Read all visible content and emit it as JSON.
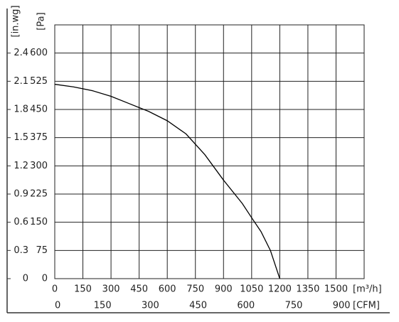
{
  "chart_data": {
    "type": "line",
    "x": [
      0,
      100,
      200,
      300,
      400,
      450,
      500,
      600,
      700,
      800,
      900,
      1000,
      1050,
      1100,
      1150,
      1200
    ],
    "series": [
      {
        "color": "#000000",
        "values": [
          517,
          510,
          500,
          485,
          465,
          455,
          445,
          420,
          385,
          330,
          262,
          200,
          162,
          125,
          75,
          0
        ]
      }
    ],
    "xlim": [
      0,
      1650
    ],
    "xticks": [
      0,
      150,
      300,
      450,
      600,
      750,
      900,
      1050,
      1200,
      1350,
      1500
    ],
    "x_label": "[m³/h]",
    "x2lim": [
      0,
      971
    ],
    "x2ticks": [
      0,
      150,
      300,
      450,
      600,
      750,
      900
    ],
    "x2_label": "[CFM]",
    "ylim": [
      0,
      675
    ],
    "yticks": [
      0,
      75,
      150,
      225,
      300,
      375,
      450,
      525,
      600
    ],
    "y_label": "[Pa]",
    "y2lim": [
      0,
      2.7
    ],
    "y2ticks": [
      0,
      0.3,
      0.6,
      0.9,
      1.2,
      1.5,
      1.8,
      2.1,
      2.4
    ],
    "y2_label": "[in.wg]",
    "grid": true
  }
}
